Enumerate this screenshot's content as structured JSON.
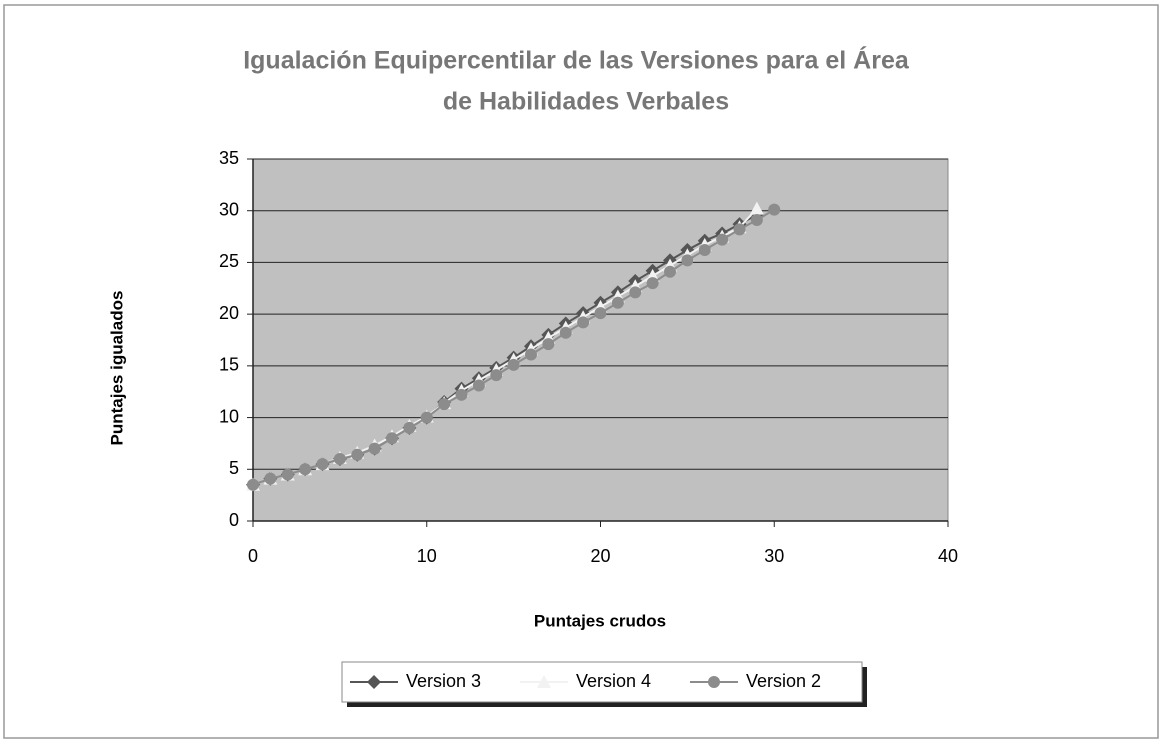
{
  "chart_data": {
    "type": "line",
    "title": [
      "Igualación Equipercentilar de las Versiones para el Área",
      "de Habilidades Verbales"
    ],
    "xlabel": "Puntajes crudos",
    "ylabel": "Puntajes igualados",
    "x": [
      0,
      1,
      2,
      3,
      4,
      5,
      6,
      7,
      8,
      9,
      10,
      11,
      12,
      13,
      14,
      15,
      16,
      17,
      18,
      19,
      20,
      21,
      22,
      23,
      24,
      25,
      26,
      27,
      28,
      29,
      30
    ],
    "series": [
      {
        "name": "Version 3",
        "color": "#555555",
        "marker": "diamond",
        "values": [
          3.5,
          4.1,
          4.5,
          5.0,
          5.5,
          6.0,
          6.4,
          7.0,
          8.0,
          9.0,
          10.0,
          11.5,
          12.8,
          13.8,
          14.8,
          15.8,
          16.9,
          18.0,
          19.1,
          20.1,
          21.1,
          22.1,
          23.2,
          24.2,
          25.2,
          26.2,
          27.1,
          27.8,
          28.7,
          29.6,
          null
        ]
      },
      {
        "name": "Version 4",
        "color": "#f2f2f2",
        "marker": "triangle",
        "values": [
          3.5,
          4.1,
          4.5,
          5.0,
          5.5,
          6.1,
          6.6,
          7.3,
          8.2,
          9.2,
          10.1,
          11.4,
          12.6,
          13.6,
          14.6,
          15.6,
          16.6,
          17.7,
          18.7,
          19.7,
          20.7,
          21.7,
          22.7,
          23.7,
          24.7,
          25.7,
          26.7,
          27.5,
          28.4,
          30.2,
          null
        ]
      },
      {
        "name": "Version 2",
        "color": "#8c8c8c",
        "marker": "circle",
        "values": [
          3.5,
          4.1,
          4.5,
          5.0,
          5.5,
          6.0,
          6.4,
          7.0,
          8.0,
          9.0,
          10.0,
          11.3,
          12.2,
          13.1,
          14.1,
          15.1,
          16.1,
          17.1,
          18.2,
          19.2,
          20.1,
          21.1,
          22.1,
          23.0,
          24.1,
          25.2,
          26.2,
          27.2,
          28.2,
          29.1,
          30.1
        ]
      }
    ],
    "xlim": [
      0,
      40
    ],
    "xticks": [
      0,
      10,
      20,
      30,
      40
    ],
    "ylim": [
      0,
      35
    ],
    "yticks": [
      0,
      5,
      10,
      15,
      20,
      25,
      30,
      35
    ],
    "grid": true,
    "legend": "bottom",
    "plot_background": "#c0c0c0"
  }
}
